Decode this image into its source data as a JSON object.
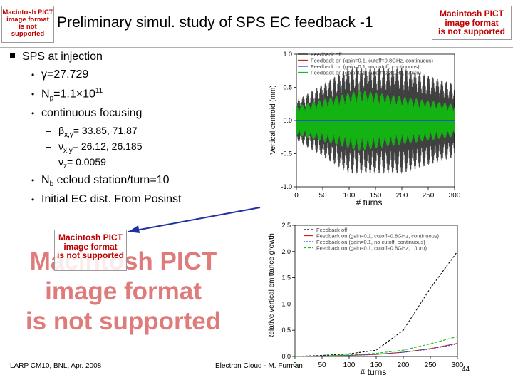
{
  "header": {
    "title": "Preliminary simul. study of SPS EC feedback -1",
    "pict_lines": [
      "Macintosh PICT",
      "image format",
      "is not supported"
    ]
  },
  "bullets": {
    "l1": "SPS at injection",
    "gamma": "=27.729",
    "np_a": "N",
    "np_sub": "p",
    "np_b": "=1.1",
    "np_c": "10",
    "np_sup": "11",
    "cont": "continuous focusing",
    "beta": "= 33.85, 71.87",
    "beta_sub": "x,y",
    "nu": "= 26.12, 26.185",
    "nu_sub": "x,y",
    "nuz": "= 0.0059",
    "nuz_sub": "z",
    "nb_a": "N",
    "nb_sub": "b",
    "nb_b": " ecloud station/turn=10",
    "initial": "Initial EC dist. From Posinst"
  },
  "pict_big_lines": [
    "Macintosh PICT",
    "image format",
    "is not supported"
  ],
  "footer": {
    "left": "LARP CM10, BNL, Apr. 2008",
    "center": "Electron Cloud - M. Furman",
    "page": "44"
  },
  "colors": {
    "feedback_off": "#000000",
    "feedback_red": "#d02020",
    "feedback_blue": "#2050d0",
    "feedback_green": "#10c010",
    "pict_red": "#c00000",
    "arrow": "#2030a0"
  },
  "chart_data": [
    {
      "type": "line",
      "ylabel": "Vertical centroid (mm)",
      "xlabel": "# turns",
      "xlim": [
        0,
        300
      ],
      "ylim": [
        -1.0,
        1.0
      ],
      "x_ticks": [
        "0",
        "50",
        "100",
        "150",
        "200",
        "250",
        "300"
      ],
      "y_ticks": [
        "1.0",
        "0.5",
        "0.0",
        "-0.5",
        "-1.0"
      ],
      "legend": [
        "Feedback off",
        "Feedback on (gain=0.1, cutoff=0.8GHz, continuous)",
        "Feedback on (gain=0.1, no cutoff, continuous)",
        "Feedback on (gain=0.1, cutoff=0.8GHz, 1/turn)"
      ]
    },
    {
      "type": "line",
      "ylabel": "Relative vertical emittance growth",
      "xlabel": "# turns",
      "xlim": [
        0,
        300
      ],
      "ylim": [
        0.0,
        2.5
      ],
      "x_ticks": [
        "0",
        "50",
        "100",
        "150",
        "200",
        "250",
        "300"
      ],
      "y_ticks": [
        "2.5",
        "2.0",
        "1.5",
        "1.0",
        "0.5",
        "0.0"
      ],
      "legend": [
        "Feedback off",
        "Feedback on (gain=0.1, cutoff=0.8GHz, continuous)",
        "Feedback on (gain=0.1, no cutoff, continuous)",
        "Feedback on (gain=0.1, cutoff=0.8GHz, 1/turn)"
      ],
      "series": [
        {
          "name": "Feedback off",
          "x": [
            0,
            50,
            100,
            150,
            200,
            250,
            300
          ],
          "values": [
            0.0,
            0.02,
            0.05,
            0.12,
            0.5,
            1.3,
            2.0
          ]
        },
        {
          "name": "Feedback on (gain=0.1, cutoff=0.8GHz, continuous)",
          "x": [
            0,
            50,
            100,
            150,
            200,
            250,
            300
          ],
          "values": [
            0.0,
            0.01,
            0.02,
            0.04,
            0.08,
            0.15,
            0.25
          ]
        },
        {
          "name": "Feedback on (gain=0.1, no cutoff, continuous)",
          "x": [
            0,
            50,
            100,
            150,
            200,
            250,
            300
          ],
          "values": [
            0.0,
            0.01,
            0.02,
            0.04,
            0.08,
            0.14,
            0.24
          ]
        },
        {
          "name": "Feedback on (gain=0.1, cutoff=0.8GHz, 1/turn)",
          "x": [
            0,
            50,
            100,
            150,
            200,
            250,
            300
          ],
          "values": [
            0.0,
            0.01,
            0.03,
            0.06,
            0.12,
            0.24,
            0.38
          ]
        }
      ]
    }
  ]
}
